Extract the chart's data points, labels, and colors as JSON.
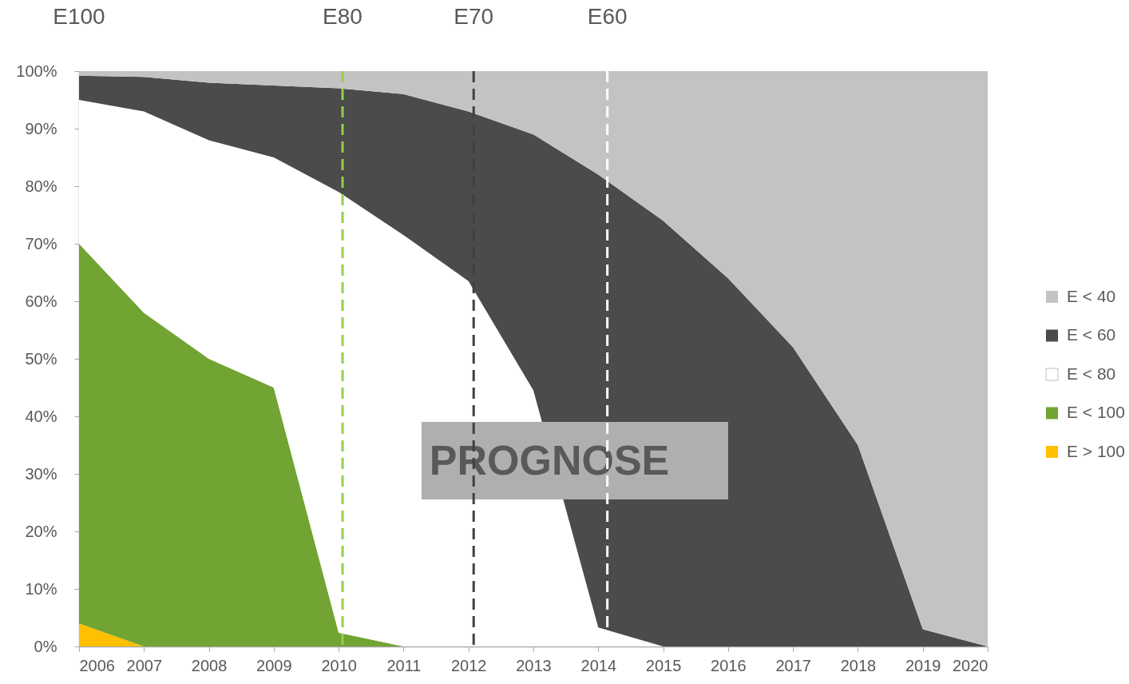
{
  "chart_data": {
    "type": "area",
    "stacked": true,
    "x": [
      2006,
      2007,
      2008,
      2009,
      2010,
      2011,
      2012,
      2013,
      2014,
      2015,
      2016,
      2017,
      2018,
      2019,
      2020
    ],
    "series": [
      {
        "name": "E > 100",
        "color": "#ffc000",
        "values": [
          4,
          0,
          0,
          0,
          0,
          0,
          0,
          0,
          0,
          0,
          0,
          0,
          0,
          0,
          0
        ]
      },
      {
        "name": "E < 100",
        "color": "#71a433",
        "values": [
          66,
          58,
          50,
          45,
          2.4,
          0,
          0,
          0,
          0,
          0,
          0,
          0,
          0,
          0,
          0
        ]
      },
      {
        "name": "E < 80",
        "color": "#ffffff",
        "values": [
          25,
          35,
          38,
          40,
          76.6,
          71.5,
          63.5,
          44.5,
          3.3,
          0,
          0,
          0,
          0,
          0,
          0
        ]
      },
      {
        "name": "E < 60",
        "color": "#4b4b4b",
        "values": [
          4.2,
          6,
          10,
          12.5,
          18,
          24.5,
          29.5,
          44.5,
          78.7,
          74,
          64,
          52,
          35,
          3,
          0
        ]
      },
      {
        "name": "E < 40",
        "color": "#c3c3c3",
        "values": [
          0.8,
          1,
          2,
          2.5,
          3,
          4,
          7,
          11,
          18,
          26,
          36,
          48,
          65,
          97,
          100
        ]
      }
    ],
    "xlim": [
      2006,
      2020
    ],
    "xticks": [
      2006,
      2007,
      2008,
      2009,
      2010,
      2011,
      2012,
      2013,
      2014,
      2015,
      2016,
      2017,
      2018,
      2019,
      2020
    ],
    "ylim": [
      0,
      100
    ],
    "yticks": [
      {
        "value": 0,
        "label": "0%"
      },
      {
        "value": 10,
        "label": "10%"
      },
      {
        "value": 20,
        "label": "20%"
      },
      {
        "value": 30,
        "label": "30%"
      },
      {
        "value": 40,
        "label": "40%"
      },
      {
        "value": 50,
        "label": "50%"
      },
      {
        "value": 60,
        "label": "60%"
      },
      {
        "value": 70,
        "label": "70%"
      },
      {
        "value": 80,
        "label": "80%"
      },
      {
        "value": 90,
        "label": "90%"
      },
      {
        "value": 100,
        "label": "100%"
      }
    ],
    "legend": "right",
    "ref_lines": [
      {
        "axis": "x",
        "value": 2010.06,
        "label": "E80",
        "color": "#92d050",
        "line_style": "dashed"
      },
      {
        "axis": "x",
        "value": 2012.08,
        "label": "E70",
        "color": "#404040",
        "line_style": "dashed"
      },
      {
        "axis": "x",
        "value": 2014.14,
        "label": "E60",
        "color": "#ffffff",
        "line_style": "dashed"
      }
    ],
    "annotations": [
      "E100",
      "PROGNOSE"
    ]
  }
}
